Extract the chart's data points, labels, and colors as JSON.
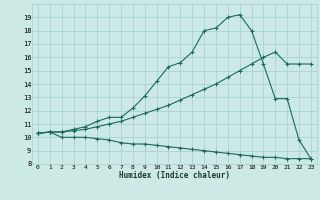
{
  "xlabel": "Humidex (Indice chaleur)",
  "xlim": [
    -0.5,
    23.5
  ],
  "ylim": [
    8,
    20
  ],
  "yticks": [
    8,
    9,
    10,
    11,
    12,
    13,
    14,
    15,
    16,
    17,
    18,
    19
  ],
  "xticks": [
    0,
    1,
    2,
    3,
    4,
    5,
    6,
    7,
    8,
    9,
    10,
    11,
    12,
    13,
    14,
    15,
    16,
    17,
    18,
    19,
    20,
    21,
    22,
    23
  ],
  "background_color": "#cce9e5",
  "grid_color": "#aad4cf",
  "line_color": "#1a6b5a",
  "line1_x": [
    0,
    1,
    2,
    3,
    4,
    5,
    6,
    7,
    8,
    9,
    10,
    11,
    12,
    13,
    14,
    15,
    16,
    17,
    18,
    19,
    20,
    21,
    22,
    23
  ],
  "line1_y": [
    10.3,
    10.4,
    10.0,
    10.0,
    10.0,
    9.9,
    9.8,
    9.6,
    9.5,
    9.5,
    9.4,
    9.3,
    9.2,
    9.1,
    9.0,
    8.9,
    8.8,
    8.7,
    8.6,
    8.5,
    8.5,
    8.4,
    8.4,
    8.4
  ],
  "line2_x": [
    0,
    1,
    2,
    3,
    4,
    5,
    6,
    7,
    8,
    9,
    10,
    11,
    12,
    13,
    14,
    15,
    16,
    17,
    18,
    19,
    20,
    21,
    22,
    23
  ],
  "line2_y": [
    10.3,
    10.4,
    10.4,
    10.5,
    10.6,
    10.8,
    11.0,
    11.2,
    11.5,
    11.8,
    12.1,
    12.4,
    12.8,
    13.2,
    13.6,
    14.0,
    14.5,
    15.0,
    15.5,
    16.0,
    16.4,
    15.5,
    15.5,
    15.5
  ],
  "line3_x": [
    0,
    1,
    2,
    3,
    4,
    5,
    6,
    7,
    8,
    9,
    10,
    11,
    12,
    13,
    14,
    15,
    16,
    17,
    18,
    19,
    20,
    21,
    22,
    23
  ],
  "line3_y": [
    10.3,
    10.4,
    10.4,
    10.6,
    10.8,
    11.2,
    11.5,
    11.5,
    12.2,
    13.1,
    14.2,
    15.3,
    15.6,
    16.4,
    18.0,
    18.2,
    19.0,
    19.2,
    18.0,
    15.5,
    12.9,
    12.9,
    9.8,
    8.4
  ]
}
